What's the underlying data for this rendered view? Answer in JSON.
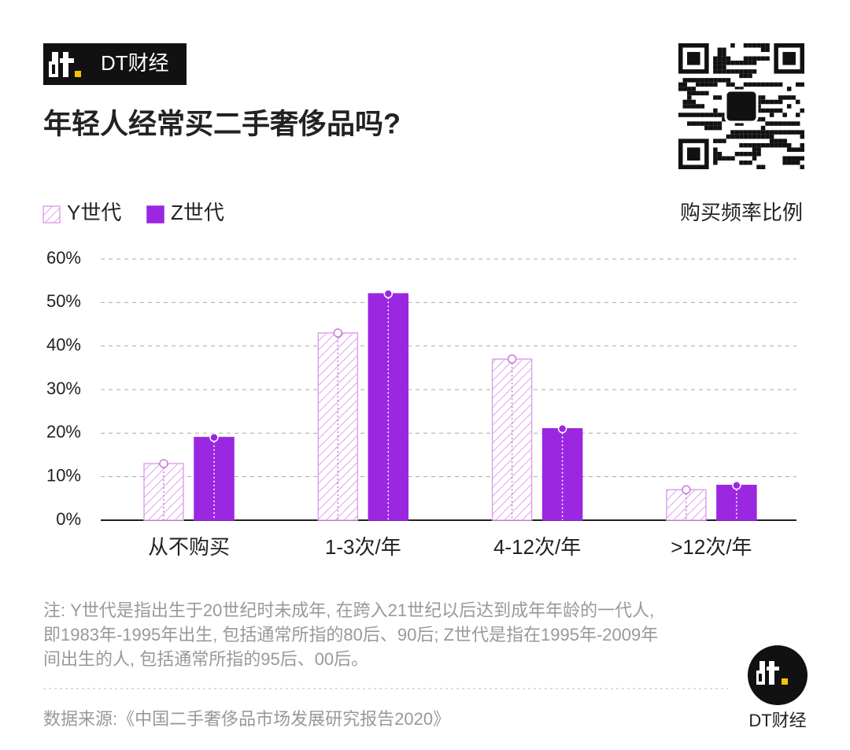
{
  "brand": "DT财经",
  "chart_data": {
    "type": "bar",
    "title": "年轻人经常买二手奢侈品吗?",
    "y_label": "购买频率比例",
    "categories": [
      "从不购买",
      "1-3次/年",
      "4-12次/年",
      ">12次/年"
    ],
    "series": [
      {
        "name": "Y世代",
        "color": "#dda3ea",
        "hatch": true,
        "values": [
          13,
          43,
          37,
          7
        ]
      },
      {
        "name": "Z世代",
        "color": "#9b27e0",
        "hatch": false,
        "values": [
          19,
          52,
          21,
          8
        ]
      }
    ],
    "ylim": [
      0,
      60
    ],
    "yticks": [
      {
        "value": 0,
        "label": "0%"
      },
      {
        "value": 10,
        "label": "10%"
      },
      {
        "value": 20,
        "label": "20%"
      },
      {
        "value": 30,
        "label": "30%"
      },
      {
        "value": 40,
        "label": "40%"
      },
      {
        "value": 50,
        "label": "50%"
      },
      {
        "value": 60,
        "label": "60%"
      }
    ],
    "grid": true
  },
  "notes": [
    "注: Y世代是指出生于20世纪时未成年, 在跨入21世纪以后达到成年年龄的一代人,",
    "即1983年-1995年出生, 包括通常所指的80后、90后; Z世代是指在1995年-2009年",
    "间出生的人, 包括通常所指的95后、00后。"
  ],
  "source": "数据来源:《中国二手奢侈品市场发展研究报告2020》",
  "footer_brand": "DT财经"
}
